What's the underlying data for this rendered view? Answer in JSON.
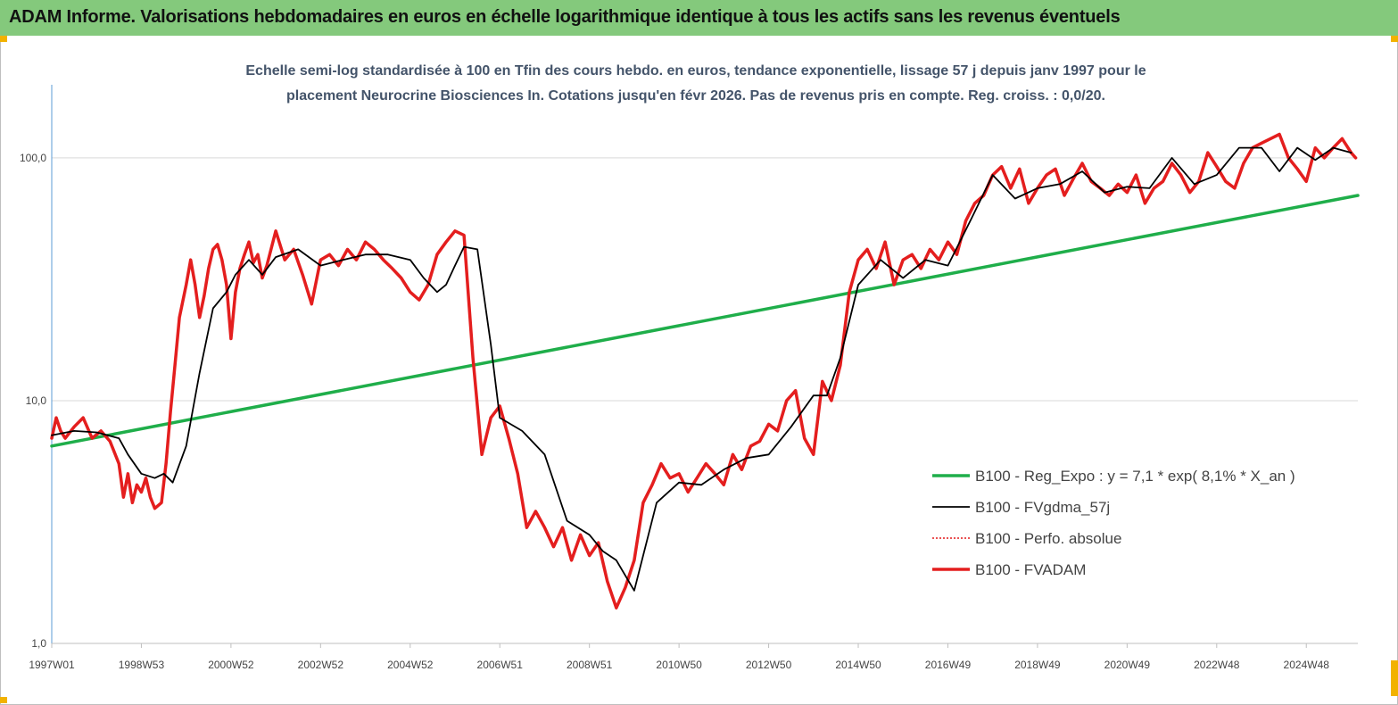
{
  "header": {
    "title": "ADAM Informe. Valorisations hebdomadaires en euros en échelle logarithmique identique à tous les actifs sans les revenus éventuels"
  },
  "colors": {
    "banner": "#84c97c",
    "corner_accent": "#f2b200"
  },
  "chart_data": {
    "type": "line",
    "title": "",
    "subtitle_lines": [
      "Echelle semi-log standardisée à 100 en Tfin des cours hebdo. en euros, tendance exponentielle, lissage 57 j depuis janv 1997 pour le",
      "placement Neurocrine Biosciences In. Cotations jusqu'en févr 2026. Pas de revenus pris en compte. Reg. croiss. : 0,0/20."
    ],
    "y_scale": "log",
    "ylim": [
      1,
      200
    ],
    "y_ticks": [
      1,
      10,
      100
    ],
    "y_tick_labels": [
      "1,0",
      "10,0",
      "100,0"
    ],
    "xlim": [
      1997.0,
      2026.15
    ],
    "x_ticks": [
      1997.0,
      1999.0,
      2001.0,
      2003.0,
      2005.0,
      2007.0,
      2009.0,
      2011.0,
      2013.0,
      2015.0,
      2017.0,
      2019.0,
      2021.0,
      2023.0,
      2025.0
    ],
    "x_tick_labels": [
      "1997W01",
      "1998W53",
      "2000W52",
      "2002W52",
      "2004W52",
      "2006W51",
      "2008W51",
      "2010W50",
      "2012W50",
      "2014W50",
      "2016W49",
      "2018W49",
      "2020W49",
      "2022W48",
      "2024W48"
    ],
    "grid": "horizontal",
    "legend_position": "bottom-right",
    "series": [
      {
        "name": "B100 - Reg_Expo : y = 7,1 * exp( 8,1% *  X_an )",
        "color": "#1fae4a",
        "style": "solid-thick",
        "x": [
          1997.0,
          2026.15
        ],
        "y": [
          6.5,
          70
        ]
      },
      {
        "name": "B100 - FVgdma_57j",
        "color": "#000000",
        "style": "solid-thin",
        "x": [
          1997.0,
          1997.5,
          1998.0,
          1998.5,
          1998.7,
          1999.0,
          1999.3,
          1999.5,
          1999.7,
          2000.0,
          2000.3,
          2000.6,
          2000.9,
          2001.1,
          2001.4,
          2001.7,
          2002.0,
          2002.5,
          2003.0,
          2003.5,
          2004.0,
          2004.5,
          2005.0,
          2005.3,
          2005.6,
          2005.8,
          2006.0,
          2006.2,
          2006.5,
          2006.8,
          2007.0,
          2007.5,
          2008.0,
          2008.5,
          2009.0,
          2009.3,
          2009.6,
          2010.0,
          2010.5,
          2011.0,
          2011.5,
          2012.0,
          2012.5,
          2013.0,
          2013.5,
          2014.0,
          2014.3,
          2014.6,
          2015.0,
          2015.5,
          2016.0,
          2016.5,
          2017.0,
          2017.5,
          2018.0,
          2018.5,
          2019.0,
          2019.5,
          2020.0,
          2020.5,
          2021.0,
          2021.5,
          2022.0,
          2022.5,
          2023.0,
          2023.5,
          2024.0,
          2024.4,
          2024.8,
          2025.2,
          2025.6,
          2026.0
        ],
        "y": [
          7.2,
          7.5,
          7.4,
          7.0,
          6.0,
          5.0,
          4.8,
          5.0,
          4.6,
          6.5,
          13,
          24,
          28,
          33,
          38,
          33,
          39,
          42,
          36,
          38,
          40,
          40,
          38,
          32,
          28,
          30,
          36,
          43,
          42,
          17,
          8.5,
          7.5,
          6.0,
          3.2,
          2.8,
          2.4,
          2.2,
          1.65,
          3.8,
          4.6,
          4.5,
          5.2,
          5.8,
          6.0,
          7.8,
          10.5,
          10.5,
          15,
          30,
          38,
          32,
          38,
          36,
          55,
          85,
          68,
          75,
          78,
          88,
          72,
          76,
          75,
          100,
          78,
          85,
          110,
          110,
          88,
          110,
          98,
          110,
          105
        ]
      },
      {
        "name": "B100 - Perfo. absolue",
        "color": "#e31a1c",
        "style": "dotted",
        "x": [],
        "y": []
      },
      {
        "name": "B100 - FVADAM",
        "color": "#e41e1e",
        "style": "solid-thick",
        "x": [
          1997.0,
          1997.1,
          1997.2,
          1997.3,
          1997.5,
          1997.7,
          1997.9,
          1998.1,
          1998.3,
          1998.5,
          1998.6,
          1998.7,
          1998.8,
          1998.9,
          1999.0,
          1999.1,
          1999.2,
          1999.3,
          1999.45,
          1999.55,
          1999.65,
          1999.75,
          1999.85,
          2000.0,
          2000.1,
          2000.2,
          2000.3,
          2000.4,
          2000.5,
          2000.6,
          2000.7,
          2000.8,
          2000.9,
          2001.0,
          2001.1,
          2001.2,
          2001.3,
          2001.4,
          2001.5,
          2001.6,
          2001.7,
          2001.8,
          2002.0,
          2002.2,
          2002.4,
          2002.6,
          2002.8,
          2003.0,
          2003.2,
          2003.4,
          2003.6,
          2003.8,
          2004.0,
          2004.2,
          2004.4,
          2004.6,
          2004.8,
          2005.0,
          2005.2,
          2005.4,
          2005.6,
          2005.8,
          2006.0,
          2006.2,
          2006.4,
          2006.6,
          2006.8,
          2007.0,
          2007.2,
          2007.4,
          2007.6,
          2007.8,
          2008.0,
          2008.2,
          2008.4,
          2008.6,
          2008.8,
          2009.0,
          2009.2,
          2009.4,
          2009.6,
          2009.8,
          2010.0,
          2010.2,
          2010.4,
          2010.6,
          2010.8,
          2011.0,
          2011.2,
          2011.4,
          2011.6,
          2011.8,
          2012.0,
          2012.2,
          2012.4,
          2012.6,
          2012.8,
          2013.0,
          2013.2,
          2013.4,
          2013.6,
          2013.8,
          2014.0,
          2014.2,
          2014.4,
          2014.6,
          2014.8,
          2015.0,
          2015.2,
          2015.4,
          2015.6,
          2015.8,
          2016.0,
          2016.2,
          2016.4,
          2016.6,
          2016.8,
          2017.0,
          2017.2,
          2017.4,
          2017.6,
          2017.8,
          2018.0,
          2018.2,
          2018.4,
          2018.6,
          2018.8,
          2019.0,
          2019.2,
          2019.4,
          2019.6,
          2019.8,
          2020.0,
          2020.2,
          2020.4,
          2020.6,
          2020.8,
          2021.0,
          2021.2,
          2021.4,
          2021.6,
          2021.8,
          2022.0,
          2022.2,
          2022.4,
          2022.6,
          2022.8,
          2023.0,
          2023.2,
          2023.4,
          2023.6,
          2023.8,
          2024.0,
          2024.2,
          2024.4,
          2024.6,
          2024.8,
          2025.0,
          2025.2,
          2025.4,
          2025.6,
          2025.8,
          2026.0,
          2026.1
        ],
        "y": [
          7.0,
          8.5,
          7.5,
          7.0,
          7.8,
          8.5,
          7.0,
          7.5,
          6.8,
          5.5,
          4.0,
          5.0,
          3.8,
          4.5,
          4.2,
          4.8,
          4.0,
          3.6,
          3.8,
          5.5,
          9.0,
          14,
          22,
          30,
          38,
          30,
          22,
          27,
          35,
          42,
          44,
          38,
          30,
          18,
          28,
          35,
          40,
          45,
          37,
          40,
          32,
          36,
          50,
          38,
          42,
          33,
          25,
          38,
          40,
          36,
          42,
          38,
          45,
          42,
          38,
          35,
          32,
          28,
          26,
          30,
          40,
          45,
          50,
          48,
          15,
          6.0,
          8.5,
          9.5,
          7.0,
          5.0,
          3.0,
          3.5,
          3.0,
          2.5,
          3.0,
          2.2,
          2.8,
          2.3,
          2.6,
          1.8,
          1.4,
          1.7,
          2.2,
          3.8,
          4.5,
          5.5,
          4.8,
          5.0,
          4.2,
          4.8,
          5.5,
          5.0,
          4.5,
          6.0,
          5.2,
          6.5,
          6.8,
          8.0,
          7.5,
          10,
          11,
          7.0,
          6.0,
          12,
          10,
          14,
          28,
          38,
          42,
          35,
          45,
          30,
          38,
          40,
          35,
          42,
          38,
          45,
          40,
          55,
          65,
          70,
          85,
          92,
          75,
          90,
          65,
          75,
          85,
          90,
          70,
          82,
          95,
          80,
          75,
          70,
          78,
          72,
          85,
          65,
          75,
          80,
          95,
          85,
          72,
          80,
          105,
          92,
          80,
          75,
          95,
          110,
          115,
          120,
          125,
          100,
          90,
          80,
          110,
          100,
          110,
          120,
          105,
          100
        ]
      }
    ]
  }
}
